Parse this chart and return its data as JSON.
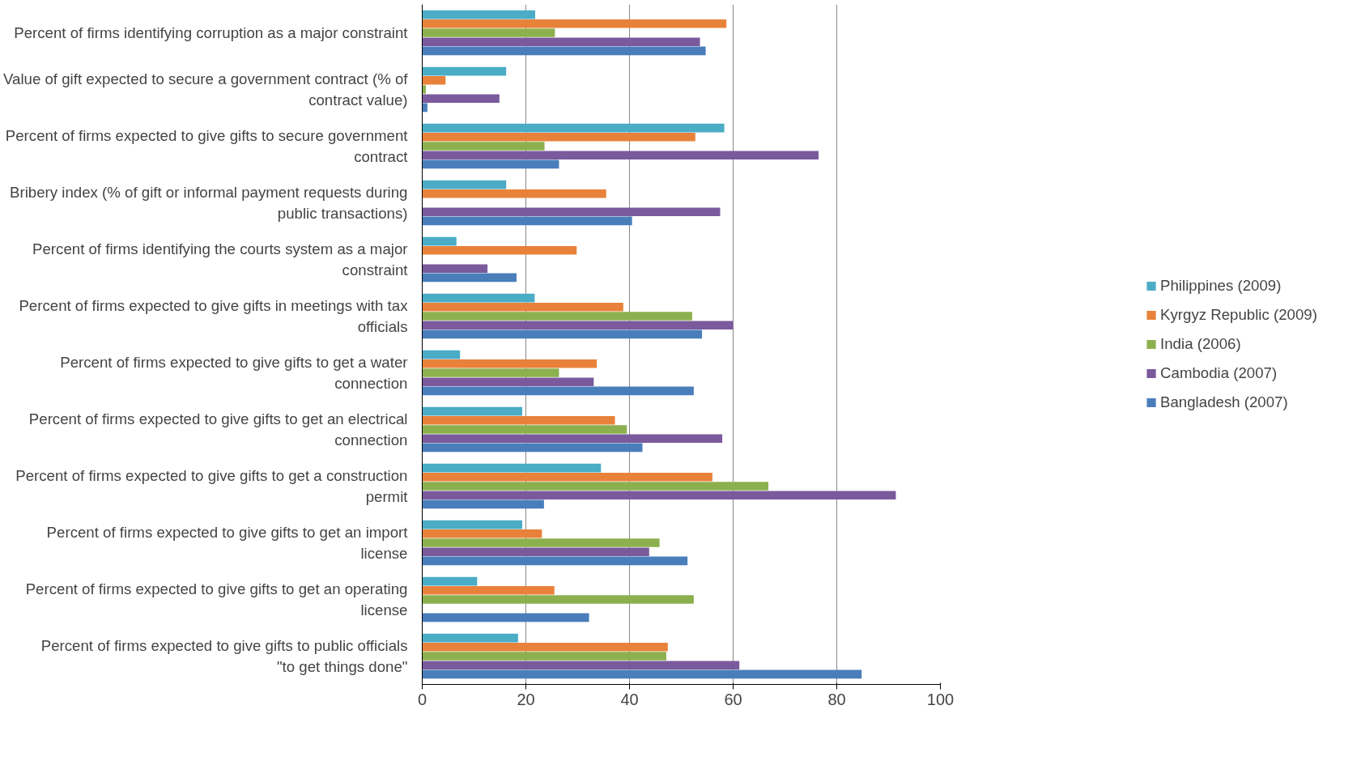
{
  "chart_data": {
    "type": "bar",
    "orientation": "horizontal",
    "categories": [
      "Percent of firms identifying corruption as a major constraint",
      "Value of gift expected to secure a government contract (% of contract value)",
      "Percent of firms expected to give gifts to secure government contract",
      "Bribery index (% of gift or informal payment requests during public transactions)",
      "Percent of firms identifying the courts system as a major constraint",
      "Percent of firms expected to give gifts in meetings with tax officials",
      "Percent of firms expected to give gifts to get a water connection",
      "Percent of firms expected to give gifts to get an electrical connection",
      "Percent of firms expected to give gifts to get a construction permit",
      "Percent of firms expected to give gifts to get an import license",
      "Percent of firms expected to give gifts to get an operating license",
      "Percent of firms expected to give gifts to public officials \"to get things done\""
    ],
    "series": [
      {
        "name": "Philippines (2009)",
        "color": "#4bacc6",
        "values": [
          21.8,
          16.2,
          58.3,
          16.2,
          6.6,
          21.7,
          7.3,
          19.3,
          34.5,
          19.3,
          10.6,
          18.5
        ]
      },
      {
        "name": "Kyrgyz Republic (2009)",
        "color": "#e8823a",
        "values": [
          58.7,
          4.5,
          52.7,
          35.5,
          29.8,
          38.8,
          33.7,
          37.2,
          56.0,
          23.1,
          25.5,
          47.4
        ]
      },
      {
        "name": "India (2006)",
        "color": "#8cb04e",
        "values": [
          25.6,
          0.7,
          23.6,
          null,
          null,
          52.1,
          26.4,
          39.5,
          66.8,
          45.8,
          52.4,
          47.1
        ]
      },
      {
        "name": "Cambodia (2007)",
        "color": "#7a5a9c",
        "values": [
          53.6,
          14.9,
          76.5,
          57.5,
          12.6,
          60.0,
          33.1,
          57.9,
          91.4,
          43.8,
          null,
          61.2
        ]
      },
      {
        "name": "Bangladesh (2007)",
        "color": "#4a7ebb",
        "values": [
          54.7,
          1.0,
          26.4,
          40.5,
          18.2,
          54.0,
          52.4,
          42.5,
          23.5,
          51.2,
          32.2,
          84.8
        ]
      }
    ],
    "xlim": [
      0,
      100
    ],
    "xticks": [
      0,
      20,
      40,
      60,
      80,
      100
    ],
    "grid": "x",
    "legend": "right"
  }
}
